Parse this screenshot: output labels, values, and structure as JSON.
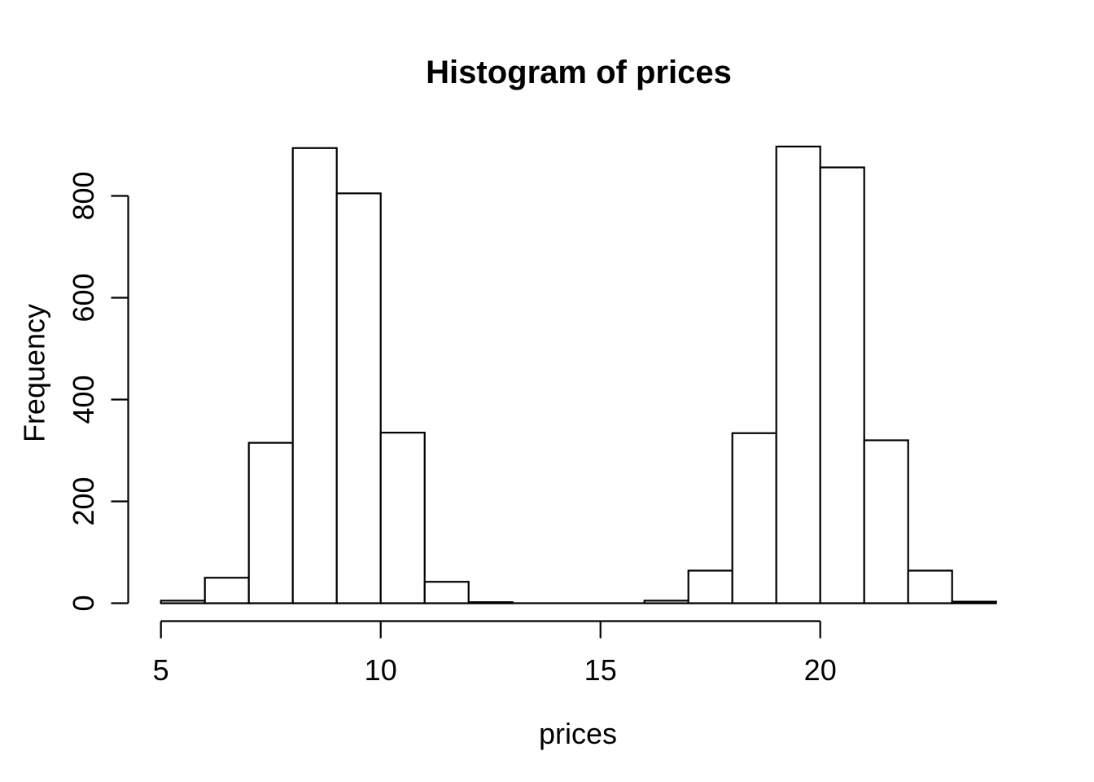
{
  "chart_data": {
    "type": "bar",
    "subtype": "histogram",
    "title": "Histogram of prices",
    "xlabel": "prices",
    "ylabel": "Frequency",
    "bin_breaks": [
      5,
      6,
      7,
      8,
      9,
      10,
      11,
      12,
      13,
      14,
      15,
      16,
      17,
      18,
      19,
      20,
      21,
      22,
      23,
      24
    ],
    "counts": [
      5,
      50,
      315,
      894,
      805,
      335,
      42,
      2,
      0,
      0,
      0,
      5,
      64,
      334,
      897,
      856,
      320,
      64,
      3
    ],
    "x_ticks": [
      5,
      10,
      15,
      20
    ],
    "y_ticks": [
      0,
      200,
      400,
      600,
      800
    ],
    "xlim": [
      5,
      24
    ],
    "ylim": [
      0,
      800
    ],
    "grid": false,
    "legend_position": "none",
    "bar_fill": "#ffffff",
    "line_color": "#000000",
    "background_color": "#ffffff"
  }
}
